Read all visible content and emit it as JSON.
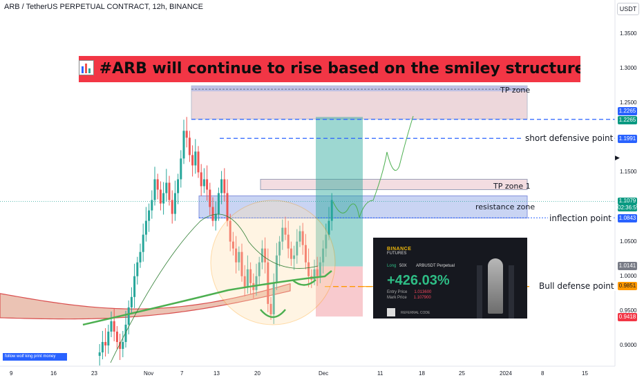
{
  "header": {
    "symbol_title": "ARB / TetherUS PERPETUAL CONTRACT, 12h, BINANCE",
    "currency": "USDT"
  },
  "headline": {
    "text": "#ARB will continue to rise based on the smiley structure"
  },
  "annotations": {
    "tp_zone": "TP zone",
    "tp_zone_1": "TP zone 1",
    "resistance_zone": "resistance zone",
    "short_defensive": "short defensive point",
    "inflection": "inflection point",
    "bull_defense": "Bull defense point"
  },
  "price_tags": {
    "p1": "1.2265",
    "p2": "1.2265",
    "p3": "1.1991",
    "p4": "1.1079",
    "p4_time": "02:36:59",
    "p5": "1.0843",
    "p6": "1.0141",
    "p7": "0.9851",
    "p8": "0.9418"
  },
  "colors": {
    "up": "#26a69a",
    "down": "#ef5350",
    "headline_bg": "#f23645",
    "tp_blue": "#2962ff",
    "profit_zone": "#26a69a",
    "loss_zone": "#ef5350",
    "ribbon": "#e8b9a7",
    "ema_green": "#4caf50",
    "bull_orange": "#ff9800",
    "circle_orange": "#ff9800"
  },
  "chart_data": {
    "type": "candlestick",
    "title": "ARB / TetherUS PERPETUAL CONTRACT, 12h, BINANCE",
    "y_axis": {
      "ticks": [
        "1.3500",
        "1.3000",
        "1.2500",
        "1.1500",
        "1.0500",
        "1.0000",
        "0.9500",
        "0.9000"
      ],
      "range": [
        0.87,
        1.38
      ],
      "unit": "USDT"
    },
    "x_axis": {
      "ticks": [
        "9",
        "16",
        "23",
        "Nov",
        "7",
        "13",
        "20",
        "Dec",
        "11",
        "18",
        "25",
        "2024",
        "8",
        "15"
      ]
    },
    "levels": {
      "tp_zone": [
        1.227,
        1.275
      ],
      "tp_zone_1": [
        1.125,
        1.14
      ],
      "resistance_zone": [
        1.084,
        1.116
      ],
      "short_defensive": 1.1991,
      "inflection": 1.0843,
      "bull_defense": 0.9851,
      "entry": 1.0141,
      "stop": 0.9418
    },
    "futures_card": {
      "exchange": "BINANCE",
      "product": "FUTURES",
      "side": "Long",
      "leverage": "50X",
      "pair": "ARBUSDT Perpetual",
      "pnl": "+426.03%",
      "entry_label": "Entry Price",
      "entry_price": "1.013600",
      "mark_label": "Mark Price",
      "mark_price": "1.107900",
      "referral": "REFERRAL CODE"
    },
    "signature": "follow wolf king print money"
  }
}
